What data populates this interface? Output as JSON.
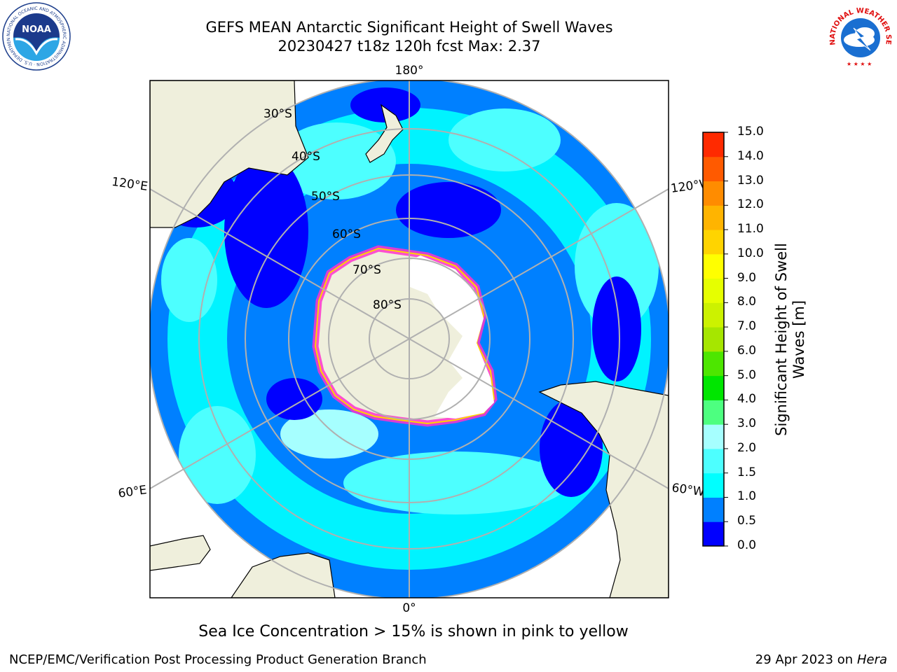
{
  "title": {
    "line1": "GEFS MEAN Antarctic Significant Height of Swell Waves",
    "line2": "20230427 t18z 120h fcst   Max: 2.37"
  },
  "map": {
    "projection": "south polar stereographic",
    "lon_labels": {
      "top": "180°",
      "bottom": "0°",
      "left_upper": "120°E",
      "left_lower": "60°E",
      "right_upper": "120°W",
      "right_lower": "60°W"
    },
    "lat_labels": [
      "30°S",
      "40°S",
      "50°S",
      "60°S",
      "70°S",
      "80°S"
    ],
    "colors": {
      "land": "#efefdc",
      "ice": "#ff33cc",
      "ice_edge": "#ffd400",
      "grid": "#b0b0b0",
      "coast": "#000000"
    }
  },
  "colorbar": {
    "label": "Significant Height of Swell Waves [m]",
    "ticks": [
      "0.0",
      "0.5",
      "1.0",
      "1.5",
      "2.0",
      "3.0",
      "4.0",
      "5.0",
      "6.0",
      "7.0",
      "8.0",
      "9.0",
      "10.0",
      "11.0",
      "12.0",
      "13.0",
      "14.0",
      "15.0"
    ],
    "colors": [
      "#0000ff",
      "#0080ff",
      "#00ffff",
      "#4dffff",
      "#a6ffff",
      "#4dff80",
      "#00e600",
      "#4de600",
      "#a6e600",
      "#ccf200",
      "#e6ff00",
      "#ffff00",
      "#ffd400",
      "#ffb400",
      "#ff8c00",
      "#ff5a00",
      "#ff2a00"
    ]
  },
  "caption": "Sea Ice Concentration > 15% is shown in pink to yellow",
  "footer": {
    "credit": "NCEP/EMC/Verification Post Processing Product Generation Branch",
    "date": "29 Apr 2023 on",
    "machine": "Hera"
  },
  "logos": {
    "noaa_text": "NOAA",
    "noaa_ring": "NATIONAL OCEANIC AND ATMOSPHERIC ADMINISTRATION · U.S. DEPARTMENT OF COMMERCE",
    "nws_ring": "NATIONAL WEATHER SERVICE"
  }
}
